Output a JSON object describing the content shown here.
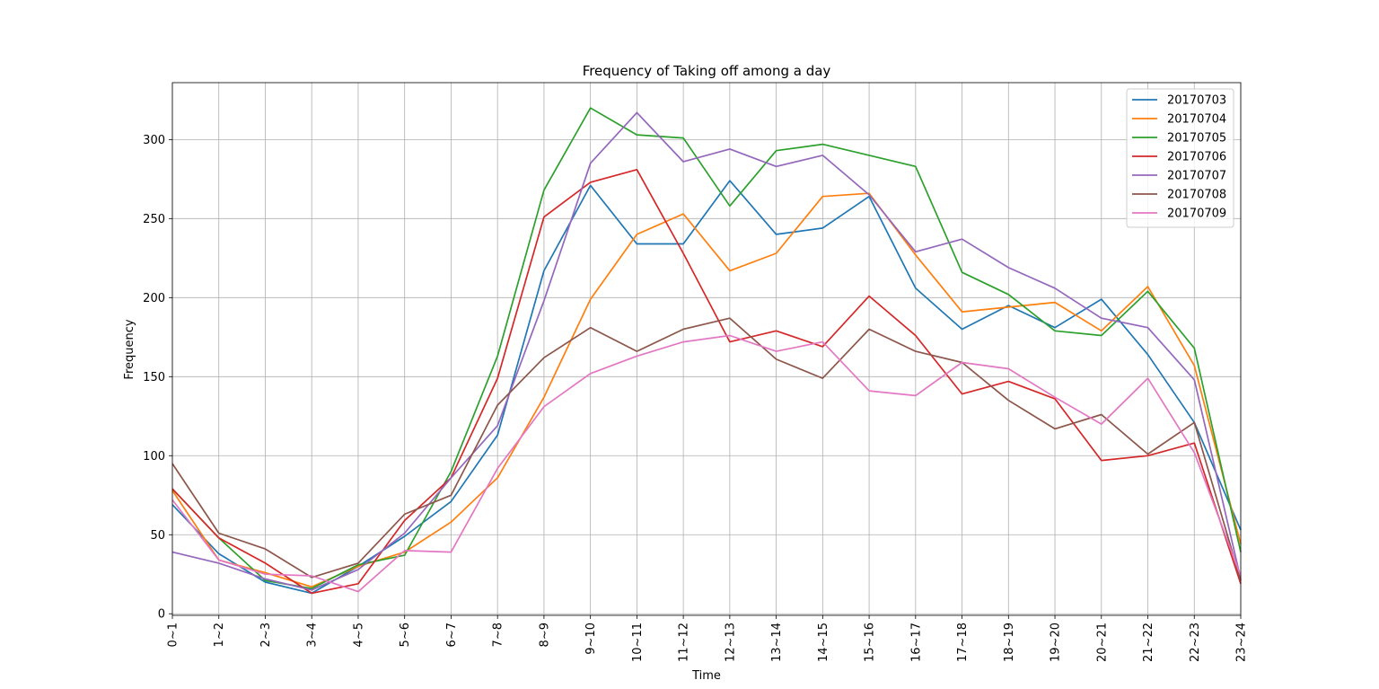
{
  "chart_data": {
    "type": "line",
    "title": "Frequency of Taking off among a day",
    "xlabel": "Time",
    "ylabel": "Frequency",
    "categories": [
      "0~1",
      "1~2",
      "2~3",
      "3~4",
      "4~5",
      "5~6",
      "6~7",
      "7~8",
      "8~9",
      "9~10",
      "10~11",
      "11~12",
      "12~13",
      "13~14",
      "14~15",
      "15~16",
      "16~17",
      "17~18",
      "18~19",
      "19~20",
      "20~21",
      "21~22",
      "22~23",
      "23~24"
    ],
    "yticks": [
      0,
      50,
      100,
      150,
      200,
      250,
      300
    ],
    "ylim": [
      -1,
      336
    ],
    "grid": true,
    "legend_position": "upper right",
    "series": [
      {
        "name": "20170703",
        "color": "#1f77b4",
        "values": [
          69,
          38,
          20,
          13,
          30,
          49,
          71,
          113,
          217,
          271,
          234,
          234,
          274,
          240,
          244,
          264,
          206,
          180,
          195,
          181,
          199,
          164,
          121,
          53
        ]
      },
      {
        "name": "20170704",
        "color": "#ff7f0e",
        "values": [
          78,
          34,
          26,
          17,
          30,
          39,
          58,
          86,
          137,
          199,
          240,
          253,
          217,
          228,
          264,
          266,
          227,
          191,
          194,
          197,
          179,
          207,
          157,
          44
        ]
      },
      {
        "name": "20170705",
        "color": "#2ca02c",
        "values": [
          79,
          48,
          21,
          16,
          31,
          37,
          90,
          163,
          268,
          320,
          303,
          301,
          258,
          293,
          297,
          290,
          283,
          216,
          202,
          179,
          176,
          204,
          168,
          39
        ]
      },
      {
        "name": "20170706",
        "color": "#d62728",
        "values": [
          79,
          48,
          32,
          13,
          19,
          59,
          86,
          149,
          251,
          273,
          281,
          228,
          172,
          179,
          169,
          201,
          176,
          139,
          147,
          136,
          97,
          100,
          108,
          19
        ]
      },
      {
        "name": "20170707",
        "color": "#9467bd",
        "values": [
          39,
          32,
          22,
          15,
          28,
          51,
          86,
          119,
          198,
          285,
          317,
          286,
          294,
          283,
          290,
          265,
          229,
          237,
          219,
          206,
          187,
          181,
          148,
          22
        ]
      },
      {
        "name": "20170708",
        "color": "#8c564b",
        "values": [
          95,
          51,
          41,
          23,
          32,
          63,
          75,
          132,
          162,
          181,
          166,
          180,
          187,
          161,
          149,
          180,
          166,
          159,
          135,
          117,
          126,
          101,
          121,
          21
        ]
      },
      {
        "name": "20170709",
        "color": "#e377c2",
        "values": [
          72,
          34,
          25,
          24,
          14,
          40,
          39,
          92,
          131,
          152,
          163,
          172,
          176,
          166,
          172,
          141,
          138,
          159,
          155,
          137,
          120,
          149,
          102,
          24
        ]
      }
    ]
  }
}
